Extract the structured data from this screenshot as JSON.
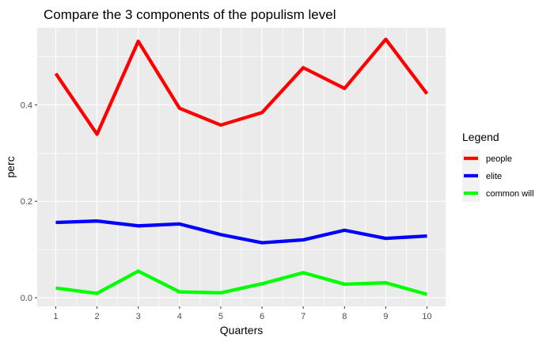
{
  "chart_data": {
    "type": "line",
    "title": "Compare the 3 components of the populism level",
    "xlabel": "Quarters",
    "ylabel": "perc",
    "x": [
      1,
      2,
      3,
      4,
      5,
      6,
      7,
      8,
      9,
      10
    ],
    "x_tick_labels": [
      "1",
      "2",
      "3",
      "4",
      "5",
      "6",
      "7",
      "8",
      "9",
      "10"
    ],
    "y_tick_values": [
      0.0,
      0.2,
      0.4
    ],
    "y_tick_labels": [
      "0.0",
      "0.2",
      "0.4"
    ],
    "xlim": [
      0.55,
      10.45
    ],
    "ylim": [
      -0.018,
      0.56
    ],
    "grid": true,
    "legend_title": "Legend",
    "legend_position": "right",
    "series": [
      {
        "name": "people",
        "color": "#ff0000",
        "values": [
          0.465,
          0.339,
          0.532,
          0.393,
          0.358,
          0.384,
          0.477,
          0.434,
          0.536,
          0.423
        ]
      },
      {
        "name": "elite",
        "color": "#0000ff",
        "values": [
          0.156,
          0.159,
          0.149,
          0.153,
          0.131,
          0.114,
          0.12,
          0.14,
          0.123,
          0.128
        ]
      },
      {
        "name": "common will",
        "color": "#00ff00",
        "values": [
          0.02,
          0.009,
          0.055,
          0.012,
          0.01,
          0.029,
          0.052,
          0.028,
          0.031,
          0.007
        ]
      }
    ]
  }
}
